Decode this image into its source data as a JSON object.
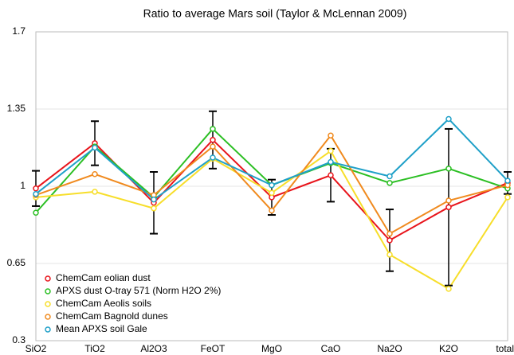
{
  "chart_data": {
    "type": "line",
    "title": "Ratio to average Mars soil (Taylor & McLennan 2009)",
    "categories": [
      "SiO2",
      "TiO2",
      "Al2O3",
      "FeOT",
      "MgO",
      "CaO",
      "Na2O",
      "K2O",
      "total"
    ],
    "ylim": [
      0.3,
      1.7
    ],
    "yticks": [
      0.3,
      0.65,
      1,
      1.35,
      1.7
    ],
    "grid": true,
    "legend": "lower-left",
    "error_color": "#000000",
    "series": [
      {
        "name": "ChemCam eolian dust",
        "color": "#e8141b",
        "values": [
          0.99,
          1.195,
          0.925,
          1.21,
          0.95,
          1.05,
          0.755,
          0.905,
          1.015
        ],
        "errors": [
          0.08,
          0.1,
          0.14,
          0.13,
          0.08,
          0.12,
          0.14,
          0.355,
          0.05
        ]
      },
      {
        "name": "APXS dust O-tray 571 (Norm H2O 2%)",
        "color": "#2cbf24",
        "values": [
          0.88,
          1.18,
          0.95,
          1.26,
          1.005,
          1.105,
          1.015,
          1.08,
          0.99
        ]
      },
      {
        "name": "ChemCam Aeolis soils",
        "color": "#f7de2a",
        "values": [
          0.95,
          0.975,
          0.9,
          1.125,
          0.97,
          1.16,
          0.69,
          0.535,
          0.95
        ]
      },
      {
        "name": "ChemCam Bagnold dunes",
        "color": "#f08a1e",
        "values": [
          0.96,
          1.055,
          0.96,
          1.18,
          0.89,
          1.23,
          0.785,
          0.935,
          1.005
        ]
      },
      {
        "name": "Mean APXS soil Gale",
        "color": "#1fa0c8",
        "values": [
          0.965,
          1.175,
          0.94,
          1.13,
          1.005,
          1.11,
          1.045,
          1.305,
          1.025
        ]
      }
    ]
  }
}
